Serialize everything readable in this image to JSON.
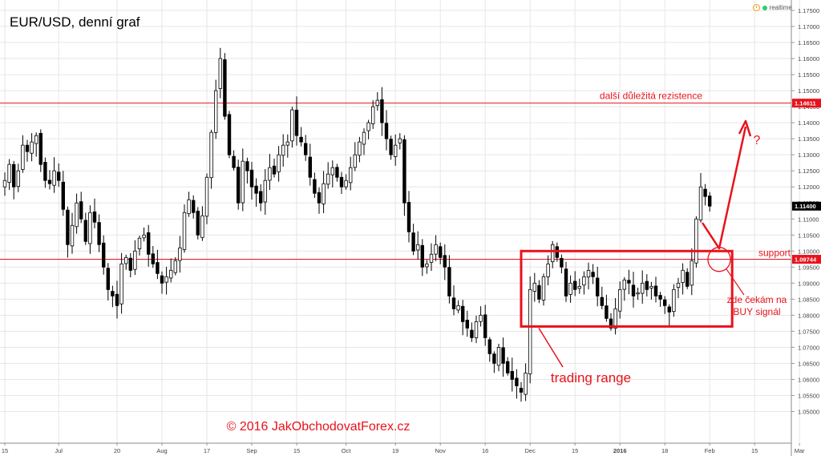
{
  "title": "EUR/USD, denní graf",
  "status": {
    "realtime_label": "realtime",
    "clock_icon": "clock-icon",
    "realtime_dot_color": "#2ecc71"
  },
  "colors": {
    "annotation": "#e8121c",
    "candle": "#000000",
    "grid": "#e6e6e6"
  },
  "chart_data": {
    "type": "candlestick",
    "title": "EUR/USD, denní graf",
    "ylim": [
      1.045,
      1.175
    ],
    "y_ticks": [
      "1.17500",
      "1.17000",
      "1.16500",
      "1.16000",
      "1.15500",
      "1.15000",
      "1.14500",
      "1.14000",
      "1.13500",
      "1.13000",
      "1.12500",
      "1.12000",
      "1.11500",
      "1.11000",
      "1.10500",
      "1.10000",
      "1.09500",
      "1.09000",
      "1.08500",
      "1.08000",
      "1.07500",
      "1.07000",
      "1.06500",
      "1.06000",
      "1.05500",
      "1.05000"
    ],
    "x_ticks": [
      {
        "label": "15",
        "bar": 0
      },
      {
        "label": "Jul",
        "bar": 12
      },
      {
        "label": "20",
        "bar": 25
      },
      {
        "label": "Aug",
        "bar": 35
      },
      {
        "label": "17",
        "bar": 45
      },
      {
        "label": "Sep",
        "bar": 55
      },
      {
        "label": "15",
        "bar": 65
      },
      {
        "label": "Oct",
        "bar": 76
      },
      {
        "label": "19",
        "bar": 87
      },
      {
        "label": "Nov",
        "bar": 97
      },
      {
        "label": "16",
        "bar": 107
      },
      {
        "label": "Dec",
        "bar": 117
      },
      {
        "label": "15",
        "bar": 127
      },
      {
        "label": "2016",
        "bar": 137
      },
      {
        "label": "18",
        "bar": 147
      },
      {
        "label": "Feb",
        "bar": 157
      },
      {
        "label": "15",
        "bar": 167
      },
      {
        "label": "Mar",
        "bar": 177
      }
    ],
    "bold_ticks": [
      "2016"
    ],
    "lines": [
      {
        "label": "další důležitá rezistence",
        "price": 1.14611,
        "price_label": "1.14611"
      },
      {
        "label": "support",
        "price": 1.09744,
        "price_label": "1.09744"
      }
    ],
    "last_price": {
      "price": 1.114,
      "price_label": "1.11400"
    },
    "annotations": {
      "range_label": "trading range",
      "wait_label_line1": "zde čekám na",
      "wait_label_line2": "BUY signál",
      "question": "?",
      "copyright": "© 2016 JakObchodovatForex.cz"
    },
    "range_box": {
      "bar_start": 115,
      "bar_end": 162,
      "price_high": 1.1,
      "price_low": 1.0765
    },
    "closes": [
      1.122,
      1.127,
      1.12,
      1.125,
      1.133,
      1.131,
      1.134,
      1.136,
      1.127,
      1.122,
      1.121,
      1.125,
      1.122,
      1.113,
      1.102,
      1.108,
      1.115,
      1.11,
      1.103,
      1.112,
      1.109,
      1.102,
      1.095,
      1.088,
      1.086,
      1.083,
      1.096,
      1.098,
      1.094,
      1.1,
      1.104,
      1.105,
      1.099,
      1.096,
      1.093,
      1.09,
      1.092,
      1.094,
      1.097,
      1.101,
      1.112,
      1.116,
      1.112,
      1.105,
      1.111,
      1.123,
      1.137,
      1.15,
      1.16,
      1.142,
      1.13,
      1.126,
      1.115,
      1.128,
      1.125,
      1.12,
      1.118,
      1.115,
      1.122,
      1.126,
      1.124,
      1.13,
      1.133,
      1.134,
      1.144,
      1.136,
      1.134,
      1.13,
      1.123,
      1.118,
      1.115,
      1.121,
      1.124,
      1.126,
      1.123,
      1.12,
      1.122,
      1.126,
      1.13,
      1.134,
      1.137,
      1.14,
      1.145,
      1.147,
      1.14,
      1.135,
      1.13,
      1.133,
      1.135,
      1.115,
      1.106,
      1.1,
      1.102,
      1.095,
      1.096,
      1.099,
      1.102,
      1.098,
      1.095,
      1.086,
      1.082,
      1.083,
      1.078,
      1.076,
      1.073,
      1.078,
      1.08,
      1.073,
      1.068,
      1.065,
      1.07,
      1.065,
      1.062,
      1.06,
      1.058,
      1.056,
      1.062,
      1.088,
      1.09,
      1.085,
      1.092,
      1.096,
      1.102,
      1.098,
      1.095,
      1.086,
      1.09,
      1.088,
      1.089,
      1.092,
      1.094,
      1.092,
      1.086,
      1.083,
      1.079,
      1.076,
      1.082,
      1.088,
      1.091,
      1.09,
      1.086,
      1.087,
      1.09,
      1.088,
      1.089,
      1.086,
      1.085,
      1.083,
      1.081,
      1.088,
      1.09,
      1.094,
      1.089,
      1.097,
      1.11,
      1.12,
      1.117,
      1.114
    ]
  }
}
